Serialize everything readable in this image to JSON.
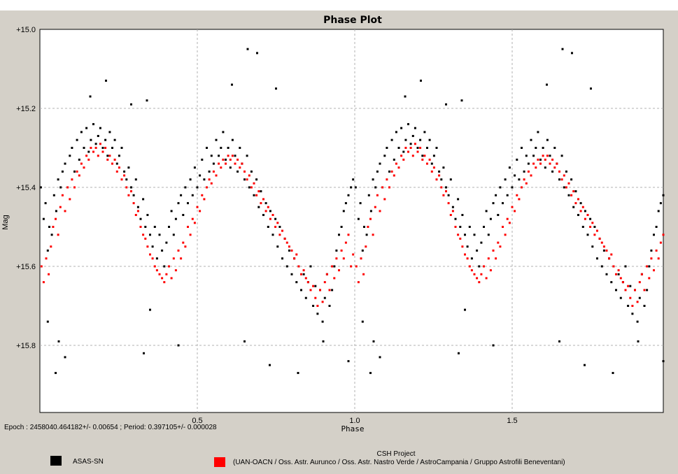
{
  "colors": {
    "background": "#d4d0c8",
    "plot_area": "#ffffff",
    "grid": "#b0b0b0",
    "series_asassn": "#000000",
    "series_uan": "#ff0000"
  },
  "chart_data": {
    "type": "scatter",
    "title": "Phase Plot",
    "xlabel": "Phase",
    "ylabel": "Mag",
    "xlim": [
      0.0,
      1.98
    ],
    "ylim": [
      15.0,
      15.97
    ],
    "y_inverted": true,
    "x_ticks": [
      0.5,
      1.0,
      1.5
    ],
    "x_tick_labels": [
      "0.5",
      "1.0",
      "1.5"
    ],
    "y_ticks": [
      15.0,
      15.2,
      15.4,
      15.6,
      15.8
    ],
    "y_tick_labels": [
      "+15.0",
      "+15.2",
      "+15.4",
      "+15.6",
      "+15.8"
    ],
    "grid": true,
    "legend_placement": "bottom",
    "period": 0.397105,
    "epoch_text": "Epoch : 2458040.464182+/- 0.00654 ; Period: 0.397105+/- 0.000028",
    "project_label": "CSH Project",
    "series": [
      {
        "name": "ASAS-SN",
        "color": "#000000",
        "x": [
          0.003,
          0.012,
          0.018,
          0.025,
          0.03,
          0.038,
          0.045,
          0.052,
          0.058,
          0.066,
          0.072,
          0.08,
          0.088,
          0.095,
          0.102,
          0.11,
          0.118,
          0.125,
          0.132,
          0.14,
          0.148,
          0.155,
          0.162,
          0.17,
          0.178,
          0.185,
          0.192,
          0.2,
          0.208,
          0.215,
          0.222,
          0.23,
          0.238,
          0.245,
          0.252,
          0.26,
          0.268,
          0.275,
          0.282,
          0.29,
          0.298,
          0.305,
          0.312,
          0.32,
          0.328,
          0.335,
          0.342,
          0.35,
          0.358,
          0.365,
          0.372,
          0.38,
          0.388,
          0.395,
          0.402,
          0.41,
          0.418,
          0.425,
          0.432,
          0.44,
          0.448,
          0.455,
          0.462,
          0.47,
          0.478,
          0.485,
          0.492,
          0.5,
          0.508,
          0.515,
          0.522,
          0.53,
          0.538,
          0.545,
          0.552,
          0.56,
          0.568,
          0.575,
          0.582,
          0.59,
          0.598,
          0.605,
          0.612,
          0.62,
          0.628,
          0.635,
          0.642,
          0.65,
          0.658,
          0.665,
          0.672,
          0.68,
          0.688,
          0.695,
          0.702,
          0.71,
          0.718,
          0.725,
          0.732,
          0.74,
          0.748,
          0.755,
          0.762,
          0.77,
          0.778,
          0.785,
          0.792,
          0.8,
          0.808,
          0.815,
          0.822,
          0.83,
          0.838,
          0.845,
          0.852,
          0.86,
          0.868,
          0.875,
          0.882,
          0.89,
          0.898,
          0.905,
          0.912,
          0.92,
          0.928,
          0.935,
          0.942,
          0.95,
          0.958,
          0.965,
          0.972,
          0.98,
          0.988,
          0.995,
          0.34,
          0.29,
          0.21,
          0.16,
          0.08,
          0.06,
          0.35,
          0.44,
          0.69,
          0.65,
          0.73,
          0.82,
          0.9,
          0.98,
          0.025,
          0.33,
          0.05,
          0.66,
          0.61,
          0.75
        ],
        "y": [
          15.4,
          15.48,
          15.44,
          15.56,
          15.5,
          15.52,
          15.42,
          15.46,
          15.38,
          15.4,
          15.36,
          15.34,
          15.4,
          15.32,
          15.3,
          15.36,
          15.28,
          15.33,
          15.26,
          15.3,
          15.25,
          15.31,
          15.28,
          15.24,
          15.29,
          15.27,
          15.25,
          15.3,
          15.28,
          15.32,
          15.26,
          15.3,
          15.28,
          15.34,
          15.32,
          15.3,
          15.36,
          15.38,
          15.35,
          15.4,
          15.42,
          15.38,
          15.45,
          15.48,
          15.43,
          15.5,
          15.47,
          15.52,
          15.55,
          15.5,
          15.58,
          15.52,
          15.56,
          15.6,
          15.54,
          15.5,
          15.46,
          15.52,
          15.48,
          15.44,
          15.42,
          15.47,
          15.4,
          15.44,
          15.38,
          15.42,
          15.35,
          15.4,
          15.37,
          15.33,
          15.38,
          15.3,
          15.36,
          15.32,
          15.34,
          15.28,
          15.32,
          15.3,
          15.26,
          15.33,
          15.3,
          15.35,
          15.28,
          15.32,
          15.36,
          15.3,
          15.34,
          15.38,
          15.32,
          15.4,
          15.36,
          15.42,
          15.38,
          15.45,
          15.41,
          15.47,
          15.44,
          15.5,
          15.46,
          15.52,
          15.48,
          15.55,
          15.5,
          15.58,
          15.53,
          15.6,
          15.56,
          15.62,
          15.58,
          15.64,
          15.6,
          15.66,
          15.62,
          15.68,
          15.64,
          15.6,
          15.7,
          15.65,
          15.72,
          15.66,
          15.74,
          15.68,
          15.62,
          15.7,
          15.66,
          15.6,
          15.56,
          15.52,
          15.5,
          15.46,
          15.44,
          15.42,
          15.4,
          15.38,
          15.18,
          15.19,
          15.13,
          15.17,
          15.83,
          15.79,
          15.71,
          15.8,
          15.06,
          15.79,
          15.85,
          15.87,
          15.79,
          15.84,
          15.74,
          15.82,
          15.87,
          15.05,
          15.14,
          15.15
        ]
      },
      {
        "name": "(UAN-OACN / Oss. Astr. Aurunco / Oss. Astr. Nastro Verde / AstroCampania / Gruppo Astrofili Beneventani)",
        "color": "#ff0000",
        "x": [
          0.005,
          0.012,
          0.02,
          0.028,
          0.035,
          0.042,
          0.05,
          0.058,
          0.065,
          0.072,
          0.08,
          0.088,
          0.095,
          0.102,
          0.11,
          0.118,
          0.125,
          0.132,
          0.14,
          0.148,
          0.155,
          0.162,
          0.17,
          0.178,
          0.185,
          0.192,
          0.2,
          0.208,
          0.215,
          0.222,
          0.23,
          0.238,
          0.245,
          0.252,
          0.26,
          0.268,
          0.275,
          0.282,
          0.29,
          0.298,
          0.305,
          0.312,
          0.32,
          0.328,
          0.335,
          0.342,
          0.35,
          0.358,
          0.365,
          0.372,
          0.38,
          0.388,
          0.395,
          0.402,
          0.41,
          0.418,
          0.425,
          0.432,
          0.44,
          0.448,
          0.455,
          0.462,
          0.47,
          0.478,
          0.485,
          0.492,
          0.5,
          0.508,
          0.515,
          0.522,
          0.53,
          0.538,
          0.545,
          0.552,
          0.56,
          0.568,
          0.575,
          0.582,
          0.59,
          0.598,
          0.605,
          0.612,
          0.62,
          0.628,
          0.635,
          0.642,
          0.65,
          0.658,
          0.665,
          0.672,
          0.68,
          0.688,
          0.695,
          0.702,
          0.71,
          0.718,
          0.725,
          0.732,
          0.74,
          0.748,
          0.755,
          0.762,
          0.77,
          0.778,
          0.785,
          0.792,
          0.8,
          0.808,
          0.815,
          0.822,
          0.83,
          0.838,
          0.845,
          0.852,
          0.86,
          0.868,
          0.875,
          0.882,
          0.89,
          0.898,
          0.905,
          0.912,
          0.92,
          0.928,
          0.935,
          0.942,
          0.95,
          0.958,
          0.965,
          0.972,
          0.98,
          0.988,
          0.995
        ],
        "y": [
          15.6,
          15.64,
          15.58,
          15.62,
          15.55,
          15.5,
          15.48,
          15.52,
          15.45,
          15.42,
          15.46,
          15.4,
          15.43,
          15.38,
          15.4,
          15.36,
          15.37,
          15.34,
          15.35,
          15.32,
          15.33,
          15.3,
          15.31,
          15.3,
          15.32,
          15.29,
          15.31,
          15.3,
          15.33,
          15.32,
          15.34,
          15.33,
          15.36,
          15.35,
          15.38,
          15.37,
          15.4,
          15.42,
          15.41,
          15.44,
          15.47,
          15.46,
          15.5,
          15.52,
          15.53,
          15.55,
          15.57,
          15.58,
          15.6,
          15.61,
          15.62,
          15.63,
          15.64,
          15.62,
          15.6,
          15.63,
          15.58,
          15.61,
          15.56,
          15.58,
          15.54,
          15.55,
          15.5,
          15.52,
          15.48,
          15.49,
          15.45,
          15.46,
          15.42,
          15.43,
          15.4,
          15.38,
          15.39,
          15.36,
          15.37,
          15.34,
          15.35,
          15.33,
          15.34,
          15.32,
          15.33,
          15.32,
          15.34,
          15.33,
          15.35,
          15.34,
          15.36,
          15.38,
          15.37,
          15.4,
          15.39,
          15.42,
          15.41,
          15.44,
          15.43,
          15.46,
          15.45,
          15.48,
          15.47,
          15.5,
          15.49,
          15.52,
          15.51,
          15.53,
          15.54,
          15.55,
          15.56,
          15.58,
          15.57,
          15.6,
          15.62,
          15.61,
          15.63,
          15.64,
          15.66,
          15.65,
          15.68,
          15.7,
          15.66,
          15.69,
          15.64,
          15.62,
          15.66,
          15.6,
          15.63,
          15.58,
          15.61,
          15.56,
          15.58,
          15.54,
          15.52,
          15.6,
          15.57
        ]
      }
    ]
  }
}
